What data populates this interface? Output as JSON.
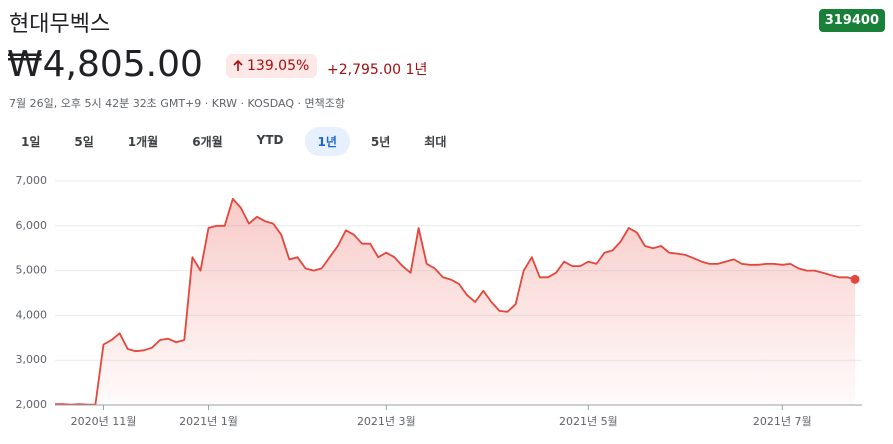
{
  "header": {
    "title": "현대무벡스",
    "ticker": "319400",
    "price": "₩4,805.00",
    "change_percent": "139.05%",
    "change_value": "+2,795.00",
    "period": "1년",
    "info": "7월 26일, 오후 5시 42분 32초 GMT+9 · KRW · KOSDAQ · 면책조항"
  },
  "tabs": [
    "1일",
    "5일",
    "1개월",
    "6개월",
    "YTD",
    "1년",
    "5년",
    "최대"
  ],
  "active_tab": 5,
  "chart_data": {
    "type": "line",
    "color": "#e4463b",
    "grid": true,
    "categories": [
      null,
      null,
      null,
      null,
      null,
      null,
      "2020년 11월",
      null,
      null,
      null,
      null,
      null,
      null,
      null,
      null,
      null,
      null,
      null,
      null,
      "2021년 1월",
      null,
      null,
      null,
      null,
      null,
      null,
      null,
      null,
      null,
      null,
      null,
      null,
      null,
      null,
      null,
      null,
      null,
      null,
      null,
      null,
      null,
      "2021년 3월",
      null,
      null,
      null,
      null,
      null,
      null,
      null,
      null,
      null,
      null,
      null,
      null,
      null,
      null,
      null,
      null,
      null,
      null,
      null,
      null,
      null,
      null,
      null,
      null,
      "2021년 5월",
      null,
      null,
      null,
      null,
      null,
      null,
      null,
      null,
      null,
      null,
      null,
      null,
      null,
      null,
      null,
      null,
      null,
      null,
      null,
      null,
      null,
      null,
      null,
      "2021년 7월",
      null,
      null,
      null,
      null,
      null,
      null,
      null,
      null,
      null
    ],
    "values": [
      2020,
      2020,
      2010,
      2020,
      2010,
      2010,
      3350,
      3450,
      3600,
      3250,
      3200,
      3220,
      3280,
      3450,
      3480,
      3400,
      3450,
      5300,
      5000,
      5950,
      6000,
      6000,
      6600,
      6400,
      6050,
      6200,
      6100,
      6050,
      5800,
      5250,
      5300,
      5050,
      5000,
      5050,
      5300,
      5550,
      5900,
      5800,
      5600,
      5600,
      5300,
      5400,
      5300,
      5100,
      4950,
      5950,
      5150,
      5050,
      4850,
      4800,
      4700,
      4450,
      4300,
      4550,
      4300,
      4100,
      4080,
      4250,
      5000,
      5300,
      4850,
      4850,
      4950,
      5200,
      5100,
      5100,
      5200,
      5150,
      5400,
      5450,
      5650,
      5950,
      5850,
      5550,
      5500,
      5550,
      5400,
      5380,
      5350,
      5280,
      5200,
      5150,
      5150,
      5200,
      5250,
      5150,
      5130,
      5130,
      5150,
      5150,
      5130,
      5150,
      5050,
      5000,
      5000,
      4950,
      4900,
      4850,
      4850,
      4805
    ],
    "ylim": [
      2000,
      7000
    ],
    "yticks": [
      {
        "value": 2000,
        "label": "2,000"
      },
      {
        "value": 3000,
        "label": "3,000"
      },
      {
        "value": 4000,
        "label": "4,000"
      },
      {
        "value": 5000,
        "label": "5,000"
      },
      {
        "value": 6000,
        "label": "6,000"
      },
      {
        "value": 7000,
        "label": "7,000"
      }
    ]
  }
}
